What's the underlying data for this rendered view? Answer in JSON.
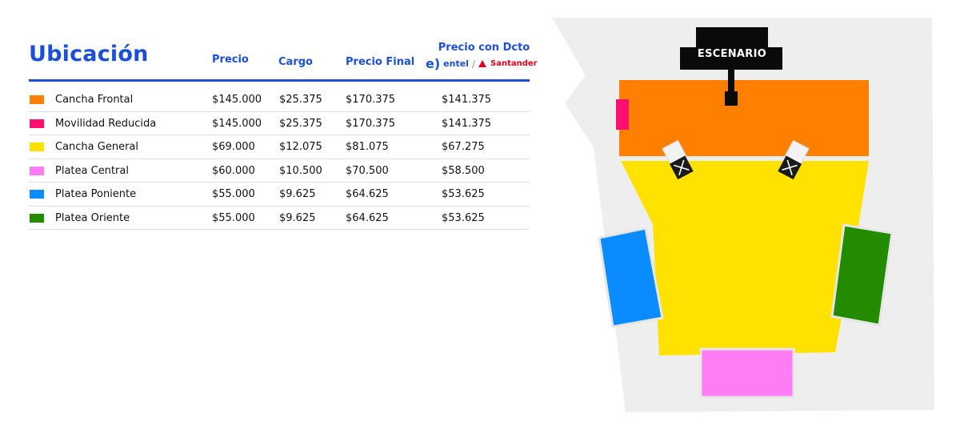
{
  "table": {
    "title": "Ubicación",
    "headers": {
      "precio": "Precio",
      "cargo": "Cargo",
      "precio_final": "Precio Final",
      "precio_dcto": "Precio con Dcto"
    },
    "brands": {
      "entel_mark": "e)",
      "entel": "entel",
      "separator": "/",
      "santander": "Santander"
    },
    "rows": [
      {
        "name": "Cancha Frontal",
        "color": "#ff7f00",
        "precio": "$145.000",
        "cargo": "$25.375",
        "final": "$170.375",
        "dcto": "$141.375"
      },
      {
        "name": "Movilidad Reducida",
        "color": "#ff0f6e",
        "precio": "$145.000",
        "cargo": "$25.375",
        "final": "$170.375",
        "dcto": "$141.375"
      },
      {
        "name": "Cancha General",
        "color": "#ffe200",
        "precio": "$69.000",
        "cargo": "$12.075",
        "final": "$81.075",
        "dcto": "$67.275"
      },
      {
        "name": "Platea Central",
        "color": "#ff7cf4",
        "precio": "$60.000",
        "cargo": "$10.500",
        "final": "$70.500",
        "dcto": "$58.500"
      },
      {
        "name": "Platea Poniente",
        "color": "#0a8cff",
        "precio": "$55.000",
        "cargo": "$9.625",
        "final": "$64.625",
        "dcto": "$53.625"
      },
      {
        "name": "Platea Oriente",
        "color": "#238b00",
        "precio": "$55.000",
        "cargo": "$9.625",
        "final": "$64.625",
        "dcto": "$53.625"
      }
    ]
  },
  "map": {
    "stage_label": "ESCENARIO",
    "colors": {
      "background": "#eeeeee",
      "stage": "#0a0a0a",
      "cancha_frontal": "#ff7f00",
      "movilidad_reducida": "#ff0f6e",
      "cancha_general": "#ffe200",
      "platea_central": "#ff7cf4",
      "platea_poniente": "#0a8cff",
      "platea_oriente": "#238b00"
    }
  }
}
